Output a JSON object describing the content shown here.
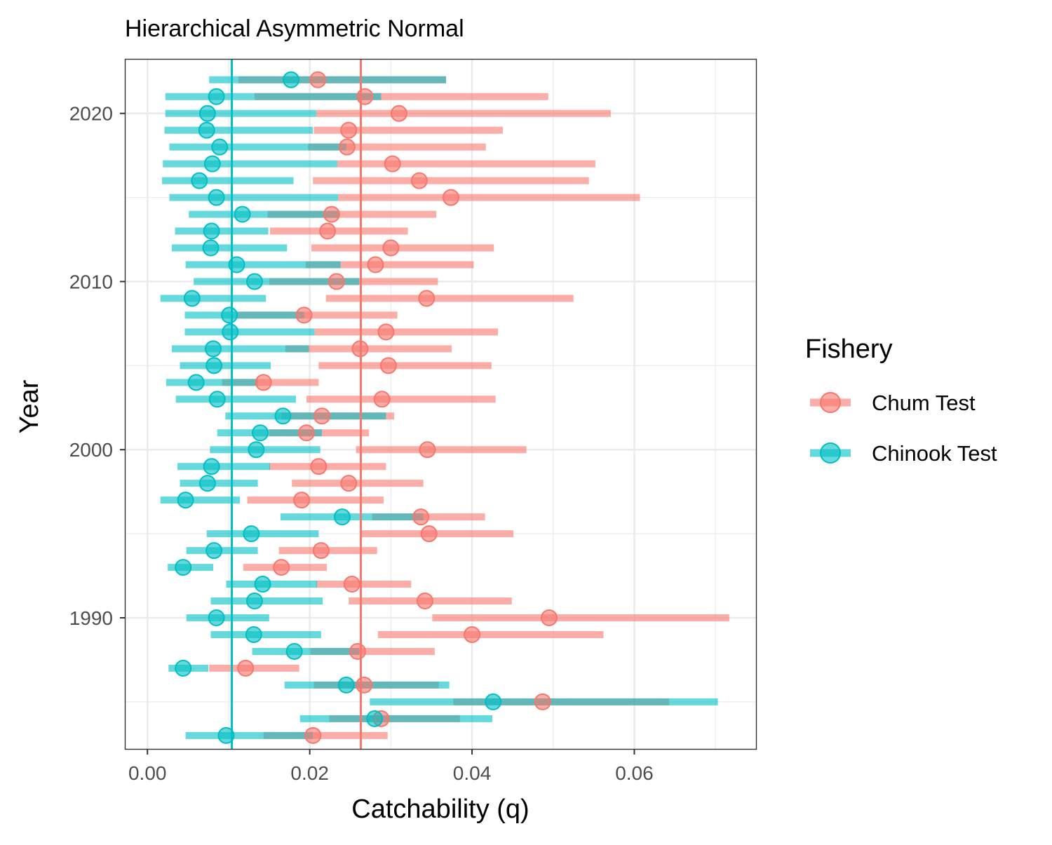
{
  "chart_data": {
    "type": "point-interval",
    "title": "Hierarchical Asymmetric Normal",
    "xlabel": "Catchability (q)",
    "ylabel": "Year",
    "xlim": [
      -0.0027,
      0.075
    ],
    "ylim": [
      1982.2,
      2023.2
    ],
    "x_ticks": [
      0.0,
      0.02,
      0.04,
      0.06
    ],
    "x_tick_labels": [
      "0.00",
      "0.02",
      "0.04",
      "0.06"
    ],
    "y_ticks": [
      1990,
      2000,
      2010,
      2020
    ],
    "y_tick_labels": [
      "1990",
      "2000",
      "2010",
      "2020"
    ],
    "grid": true,
    "legend": {
      "title": "Fishery",
      "position": "right"
    },
    "series": [
      {
        "name": "Chum Test",
        "color": "#F8766D",
        "reference_line": 0.0263,
        "data": [
          {
            "year": 1983,
            "q": 0.0204,
            "lo": 0.0143,
            "hi": 0.0296
          },
          {
            "year": 1984,
            "q": 0.0288,
            "lo": 0.0224,
            "hi": 0.0385
          },
          {
            "year": 1985,
            "q": 0.0487,
            "lo": 0.0377,
            "hi": 0.0643
          },
          {
            "year": 1986,
            "q": 0.0267,
            "lo": 0.0205,
            "hi": 0.0359
          },
          {
            "year": 1987,
            "q": 0.0121,
            "lo": 0.0076,
            "hi": 0.0187
          },
          {
            "year": 1988,
            "q": 0.0259,
            "lo": 0.0201,
            "hi": 0.0354
          },
          {
            "year": 1989,
            "q": 0.04,
            "lo": 0.0284,
            "hi": 0.0562
          },
          {
            "year": 1990,
            "q": 0.0495,
            "lo": 0.0351,
            "hi": 0.0717
          },
          {
            "year": 1991,
            "q": 0.0342,
            "lo": 0.0248,
            "hi": 0.0449
          },
          {
            "year": 1992,
            "q": 0.0252,
            "lo": 0.0208,
            "hi": 0.0325
          },
          {
            "year": 1993,
            "q": 0.0165,
            "lo": 0.0118,
            "hi": 0.0221
          },
          {
            "year": 1994,
            "q": 0.0214,
            "lo": 0.0162,
            "hi": 0.0283
          },
          {
            "year": 1995,
            "q": 0.0347,
            "lo": 0.0263,
            "hi": 0.0451
          },
          {
            "year": 1996,
            "q": 0.0337,
            "lo": 0.0277,
            "hi": 0.0416
          },
          {
            "year": 1997,
            "q": 0.019,
            "lo": 0.0123,
            "hi": 0.0291
          },
          {
            "year": 1998,
            "q": 0.0248,
            "lo": 0.0178,
            "hi": 0.034
          },
          {
            "year": 1999,
            "q": 0.0211,
            "lo": 0.015,
            "hi": 0.0294
          },
          {
            "year": 2000,
            "q": 0.0345,
            "lo": 0.0257,
            "hi": 0.0467
          },
          {
            "year": 2001,
            "q": 0.0196,
            "lo": 0.015,
            "hi": 0.0273
          },
          {
            "year": 2002,
            "q": 0.0215,
            "lo": 0.0165,
            "hi": 0.0304
          },
          {
            "year": 2003,
            "q": 0.0289,
            "lo": 0.0196,
            "hi": 0.0429
          },
          {
            "year": 2004,
            "q": 0.0143,
            "lo": 0.0092,
            "hi": 0.0211
          },
          {
            "year": 2005,
            "q": 0.0297,
            "lo": 0.0211,
            "hi": 0.0424
          },
          {
            "year": 2006,
            "q": 0.0262,
            "lo": 0.017,
            "hi": 0.0375
          },
          {
            "year": 2007,
            "q": 0.0294,
            "lo": 0.0206,
            "hi": 0.0432
          },
          {
            "year": 2008,
            "q": 0.0193,
            "lo": 0.011,
            "hi": 0.0308
          },
          {
            "year": 2009,
            "q": 0.0344,
            "lo": 0.022,
            "hi": 0.0525
          },
          {
            "year": 2010,
            "q": 0.0233,
            "lo": 0.015,
            "hi": 0.0358
          },
          {
            "year": 2011,
            "q": 0.0281,
            "lo": 0.0195,
            "hi": 0.0402
          },
          {
            "year": 2012,
            "q": 0.03,
            "lo": 0.0202,
            "hi": 0.0427
          },
          {
            "year": 2013,
            "q": 0.0222,
            "lo": 0.0151,
            "hi": 0.0321
          },
          {
            "year": 2014,
            "q": 0.0227,
            "lo": 0.0148,
            "hi": 0.0356
          },
          {
            "year": 2015,
            "q": 0.0374,
            "lo": 0.0235,
            "hi": 0.0607
          },
          {
            "year": 2016,
            "q": 0.0335,
            "lo": 0.0204,
            "hi": 0.0544
          },
          {
            "year": 2017,
            "q": 0.0302,
            "lo": 0.0234,
            "hi": 0.0552
          },
          {
            "year": 2018,
            "q": 0.0246,
            "lo": 0.0198,
            "hi": 0.0417
          },
          {
            "year": 2019,
            "q": 0.0248,
            "lo": 0.0205,
            "hi": 0.0438
          },
          {
            "year": 2020,
            "q": 0.031,
            "lo": 0.0208,
            "hi": 0.0571
          },
          {
            "year": 2021,
            "q": 0.0268,
            "lo": 0.0132,
            "hi": 0.0494
          },
          {
            "year": 2022,
            "q": 0.021,
            "lo": 0.0112,
            "hi": 0.0368
          }
        ]
      },
      {
        "name": "Chinook Test",
        "color": "#00BFC4",
        "reference_line": 0.0104,
        "data": [
          {
            "year": 1983,
            "q": 0.0097,
            "lo": 0.0047,
            "hi": 0.0204
          },
          {
            "year": 1984,
            "q": 0.028,
            "lo": 0.0188,
            "hi": 0.0425
          },
          {
            "year": 1985,
            "q": 0.0426,
            "lo": 0.0274,
            "hi": 0.0703
          },
          {
            "year": 1986,
            "q": 0.0245,
            "lo": 0.0169,
            "hi": 0.0372
          },
          {
            "year": 1987,
            "q": 0.0044,
            "lo": 0.0026,
            "hi": 0.0075
          },
          {
            "year": 1988,
            "q": 0.0181,
            "lo": 0.0129,
            "hi": 0.0261
          },
          {
            "year": 1989,
            "q": 0.0131,
            "lo": 0.0078,
            "hi": 0.0214
          },
          {
            "year": 1990,
            "q": 0.0085,
            "lo": 0.0048,
            "hi": 0.015
          },
          {
            "year": 1991,
            "q": 0.0132,
            "lo": 0.0078,
            "hi": 0.0216
          },
          {
            "year": 1992,
            "q": 0.0142,
            "lo": 0.0097,
            "hi": 0.0209
          },
          {
            "year": 1993,
            "q": 0.0044,
            "lo": 0.0025,
            "hi": 0.0081
          },
          {
            "year": 1994,
            "q": 0.0082,
            "lo": 0.0048,
            "hi": 0.0136
          },
          {
            "year": 1995,
            "q": 0.0128,
            "lo": 0.0073,
            "hi": 0.0211
          },
          {
            "year": 1996,
            "q": 0.024,
            "lo": 0.0164,
            "hi": 0.034
          },
          {
            "year": 1997,
            "q": 0.0047,
            "lo": 0.0016,
            "hi": 0.0114
          },
          {
            "year": 1998,
            "q": 0.0074,
            "lo": 0.004,
            "hi": 0.0136
          },
          {
            "year": 1999,
            "q": 0.0079,
            "lo": 0.0037,
            "hi": 0.0151
          },
          {
            "year": 2000,
            "q": 0.0134,
            "lo": 0.0077,
            "hi": 0.0213
          },
          {
            "year": 2001,
            "q": 0.0139,
            "lo": 0.0086,
            "hi": 0.0215
          },
          {
            "year": 2002,
            "q": 0.0167,
            "lo": 0.0096,
            "hi": 0.0294
          },
          {
            "year": 2003,
            "q": 0.0086,
            "lo": 0.0035,
            "hi": 0.0183
          },
          {
            "year": 2004,
            "q": 0.006,
            "lo": 0.0023,
            "hi": 0.0136
          },
          {
            "year": 2005,
            "q": 0.0082,
            "lo": 0.004,
            "hi": 0.0152
          },
          {
            "year": 2006,
            "q": 0.0081,
            "lo": 0.003,
            "hi": 0.0199
          },
          {
            "year": 2007,
            "q": 0.0102,
            "lo": 0.0046,
            "hi": 0.0206
          },
          {
            "year": 2008,
            "q": 0.0101,
            "lo": 0.0046,
            "hi": 0.0193
          },
          {
            "year": 2009,
            "q": 0.0055,
            "lo": 0.0016,
            "hi": 0.0146
          },
          {
            "year": 2010,
            "q": 0.0132,
            "lo": 0.0057,
            "hi": 0.0261
          },
          {
            "year": 2011,
            "q": 0.011,
            "lo": 0.0047,
            "hi": 0.0238
          },
          {
            "year": 2012,
            "q": 0.0078,
            "lo": 0.003,
            "hi": 0.0172
          },
          {
            "year": 2013,
            "q": 0.0079,
            "lo": 0.0034,
            "hi": 0.0149
          },
          {
            "year": 2014,
            "q": 0.0117,
            "lo": 0.0051,
            "hi": 0.0235
          },
          {
            "year": 2015,
            "q": 0.0085,
            "lo": 0.0027,
            "hi": 0.0235
          },
          {
            "year": 2016,
            "q": 0.0064,
            "lo": 0.0018,
            "hi": 0.018
          },
          {
            "year": 2017,
            "q": 0.008,
            "lo": 0.0019,
            "hi": 0.0234
          },
          {
            "year": 2018,
            "q": 0.0089,
            "lo": 0.0027,
            "hi": 0.0245
          },
          {
            "year": 2019,
            "q": 0.0073,
            "lo": 0.0021,
            "hi": 0.0204
          },
          {
            "year": 2020,
            "q": 0.0074,
            "lo": 0.0022,
            "hi": 0.0208
          },
          {
            "year": 2021,
            "q": 0.0085,
            "lo": 0.0022,
            "hi": 0.0288
          },
          {
            "year": 2022,
            "q": 0.0177,
            "lo": 0.0076,
            "hi": 0.0368
          }
        ]
      }
    ]
  }
}
